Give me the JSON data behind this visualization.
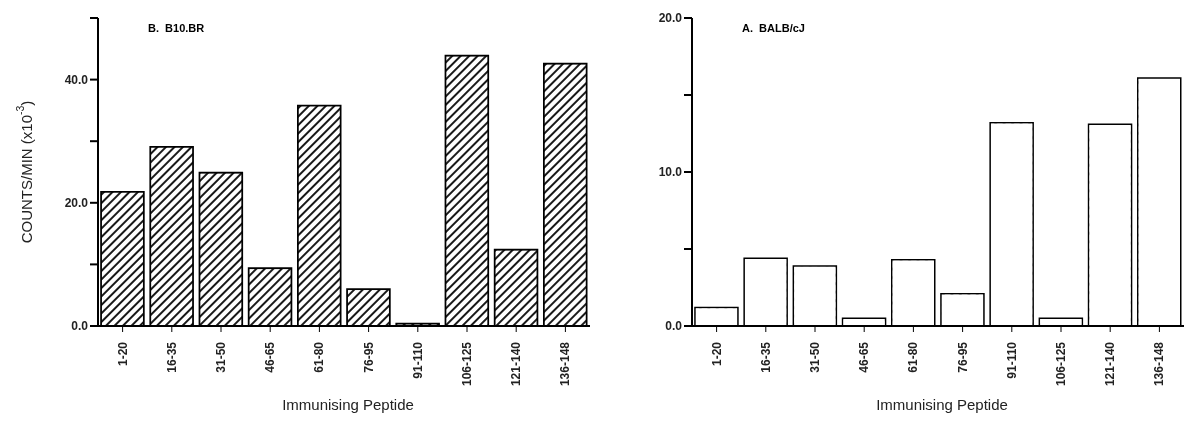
{
  "chart_data": [
    {
      "type": "bar",
      "title": "B.  B10.BR",
      "xlabel": "Immunising Peptide",
      "ylabel": "COUNTS/MIN (x10$^{-3}$)",
      "categories": [
        "1-20",
        "16-35",
        "31-50",
        "46-65",
        "61-80",
        "76-95",
        "91-110",
        "106-125",
        "121-140",
        "136-148"
      ],
      "values": [
        21.8,
        29.1,
        24.9,
        9.4,
        35.8,
        6.0,
        0.4,
        43.9,
        12.4,
        42.6
      ],
      "color": "#000000",
      "ylim": [
        0,
        50
      ],
      "yticks": [
        {
          "value": 0,
          "label": "0.0"
        },
        {
          "value": 10,
          "label": null
        },
        {
          "value": 20,
          "label": "20.0"
        },
        {
          "value": 30,
          "label": null
        },
        {
          "value": 40,
          "label": "40.0"
        },
        {
          "value": 50,
          "label": null
        }
      ]
    },
    {
      "type": "bar",
      "title": "A.  BALB/cJ",
      "xlabel": "Immunising Peptide",
      "categories": [
        "1-20",
        "16-35",
        "31-50",
        "46-65",
        "61-80",
        "76-95",
        "91-110",
        "106-125",
        "121-140",
        "136-148"
      ],
      "values": [
        1.2,
        4.4,
        3.9,
        0.5,
        4.3,
        2.1,
        13.2,
        0.5,
        13.1,
        16.1
      ],
      "color": "#ffffff",
      "ylim": [
        0,
        20
      ],
      "yticks": [
        {
          "value": 0,
          "label": "0.0"
        },
        {
          "value": 5,
          "label": null
        },
        {
          "value": 10,
          "label": "10.0"
        },
        {
          "value": 15,
          "label": null
        },
        {
          "value": 20,
          "label": "20.0"
        }
      ]
    }
  ]
}
